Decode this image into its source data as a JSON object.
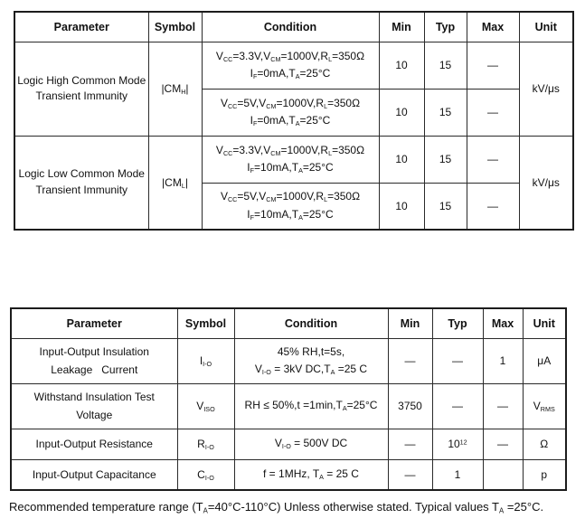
{
  "table1": {
    "headers": [
      "Parameter",
      "Symbol",
      "Condition",
      "Min",
      "Typ",
      "Max",
      "Unit"
    ],
    "groups": [
      {
        "parameter": "Logic High Common Mode Transient Immunity",
        "symbol": "|CM~H~|",
        "unit": "kV/μs",
        "rows": [
          {
            "condition": [
              "V~CC~=3.3V,V~CM~=1000V,R~L~=350Ω",
              "I~F~=0mA,T~A~=25°C"
            ],
            "min": "10",
            "typ": "15",
            "max": "—"
          },
          {
            "condition": [
              "V~CC~=5V,V~CM~=1000V,R~L~=350Ω",
              "I~F~=0mA,T~A~=25°C"
            ],
            "min": "10",
            "typ": "15",
            "max": "—"
          }
        ]
      },
      {
        "parameter": "Logic Low Common Mode Transient Immunity",
        "symbol": "|CM~L~|",
        "unit": "kV/μs",
        "rows": [
          {
            "condition": [
              "V~CC~=3.3V,V~CM~=1000V,R~L~=350Ω",
              "I~F~=10mA,T~A~=25°C"
            ],
            "min": "10",
            "typ": "15",
            "max": "—"
          },
          {
            "condition": [
              "V~CC~=5V,V~CM~=1000V,R~L~=350Ω",
              "I~F~=10mA,T~A~=25°C"
            ],
            "min": "10",
            "typ": "15",
            "max": "—"
          }
        ]
      }
    ]
  },
  "table2": {
    "headers": [
      "Parameter",
      "Symbol",
      "Condition",
      "Min",
      "Typ",
      "Max",
      "Unit"
    ],
    "rows": [
      {
        "parameter_lines": [
          "Input-Output Insulation",
          "Leakage   Current"
        ],
        "symbol": "I~I-O~",
        "condition": [
          "45% RH,t=5s,",
          "V~I-O~ = 3kV DC,T~A~ =25 C"
        ],
        "min": "—",
        "typ": "—",
        "max": "1",
        "unit": "μA"
      },
      {
        "parameter_lines": [
          "Withstand Insulation Test",
          "Voltage"
        ],
        "symbol": "V~ISO~",
        "condition": [
          "RH ≤ 50%,t =1min,T~A~=25°C"
        ],
        "min": "3750",
        "typ": "—",
        "max": "—",
        "unit": "V~RMS~"
      },
      {
        "parameter_lines": [
          "Input-Output Resistance"
        ],
        "symbol": "R~I-O~",
        "condition": [
          "V~I-O~ = 500V DC"
        ],
        "min": "—",
        "typ": "10^12^",
        "max": "—",
        "unit": "Ω"
      },
      {
        "parameter_lines": [
          "Input-Output Capacitance"
        ],
        "symbol": "C~I-O~",
        "condition": [
          "f = 1MHz, T~A~ = 25 C"
        ],
        "min": "—",
        "typ": "1",
        "max": "",
        "unit": "p"
      }
    ]
  },
  "footnote": "Recommended temperature range (T~A~=40°C-110°C) Unless otherwise stated. Typical values T~A~ =25°C.",
  "colors": {
    "border": "#1c1c1c",
    "text": "#111111",
    "background": "#ffffff"
  }
}
